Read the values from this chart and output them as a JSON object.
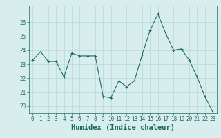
{
  "x": [
    0,
    1,
    2,
    3,
    4,
    5,
    6,
    7,
    8,
    9,
    10,
    11,
    12,
    13,
    14,
    15,
    16,
    17,
    18,
    19,
    20,
    21,
    22,
    23
  ],
  "y": [
    23.3,
    23.9,
    23.2,
    23.2,
    22.1,
    23.8,
    23.6,
    23.6,
    23.6,
    20.7,
    20.6,
    21.8,
    21.4,
    21.8,
    23.7,
    25.4,
    26.6,
    25.2,
    24.0,
    24.1,
    23.3,
    22.1,
    20.7,
    19.6
  ],
  "line_color": "#1d6b5e",
  "marker": "+",
  "marker_size": 3,
  "bg_color": "#d8eeee",
  "grid_color": "#b8d8d8",
  "tick_color": "#1d6b5e",
  "label_color": "#1d6b5e",
  "xlabel": "Humidex (Indice chaleur)",
  "xlabel_fontsize": 7.5,
  "tick_fontsize": 5.5,
  "ylim": [
    19.5,
    27.2
  ],
  "yticks": [
    20,
    21,
    22,
    23,
    24,
    25,
    26
  ],
  "xticks": [
    0,
    1,
    2,
    3,
    4,
    5,
    6,
    7,
    8,
    9,
    10,
    11,
    12,
    13,
    14,
    15,
    16,
    17,
    18,
    19,
    20,
    21,
    22,
    23
  ],
  "xlim": [
    -0.5,
    23.5
  ]
}
